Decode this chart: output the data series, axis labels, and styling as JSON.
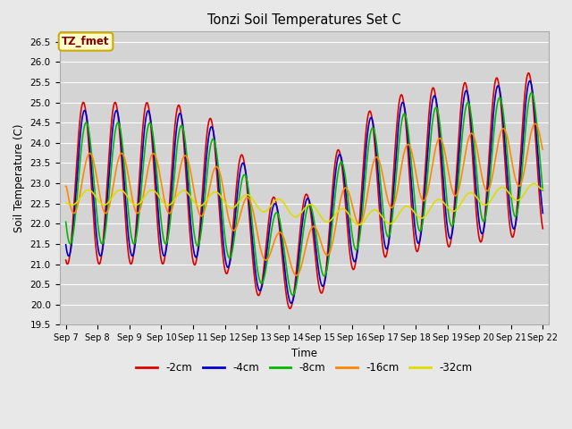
{
  "title": "Tonzi Soil Temperatures Set C",
  "xlabel": "Time",
  "ylabel": "Soil Temperature (C)",
  "ylim": [
    19.5,
    26.75
  ],
  "background_color": "#e8e8e8",
  "plot_bg_color": "#d4d4d4",
  "grid_color": "#ffffff",
  "annotation_text": "TZ_fmet",
  "annotation_bg": "#ffffcc",
  "annotation_border": "#ccaa00",
  "annotation_text_color": "#880000",
  "series": {
    "-2cm": {
      "color": "#dd0000",
      "lw": 1.2
    },
    "-4cm": {
      "color": "#0000cc",
      "lw": 1.2
    },
    "-8cm": {
      "color": "#00bb00",
      "lw": 1.2
    },
    "-16cm": {
      "color": "#ff8800",
      "lw": 1.2
    },
    "-32cm": {
      "color": "#dddd00",
      "lw": 1.2
    }
  },
  "xtick_labels": [
    "Sep 7",
    "Sep 8",
    "Sep 9",
    "Sep 10",
    "Sep 11",
    "Sep 12",
    "Sep 13",
    "Sep 14",
    "Sep 15",
    "Sep 16",
    "Sep 17",
    "Sep 18",
    "Sep 19",
    "Sep 20",
    "Sep 21",
    "Sep 22"
  ],
  "ytick_values": [
    19.5,
    20.0,
    20.5,
    21.0,
    21.5,
    22.0,
    22.5,
    23.0,
    23.5,
    24.0,
    24.5,
    25.0,
    25.5,
    26.0,
    26.5
  ]
}
